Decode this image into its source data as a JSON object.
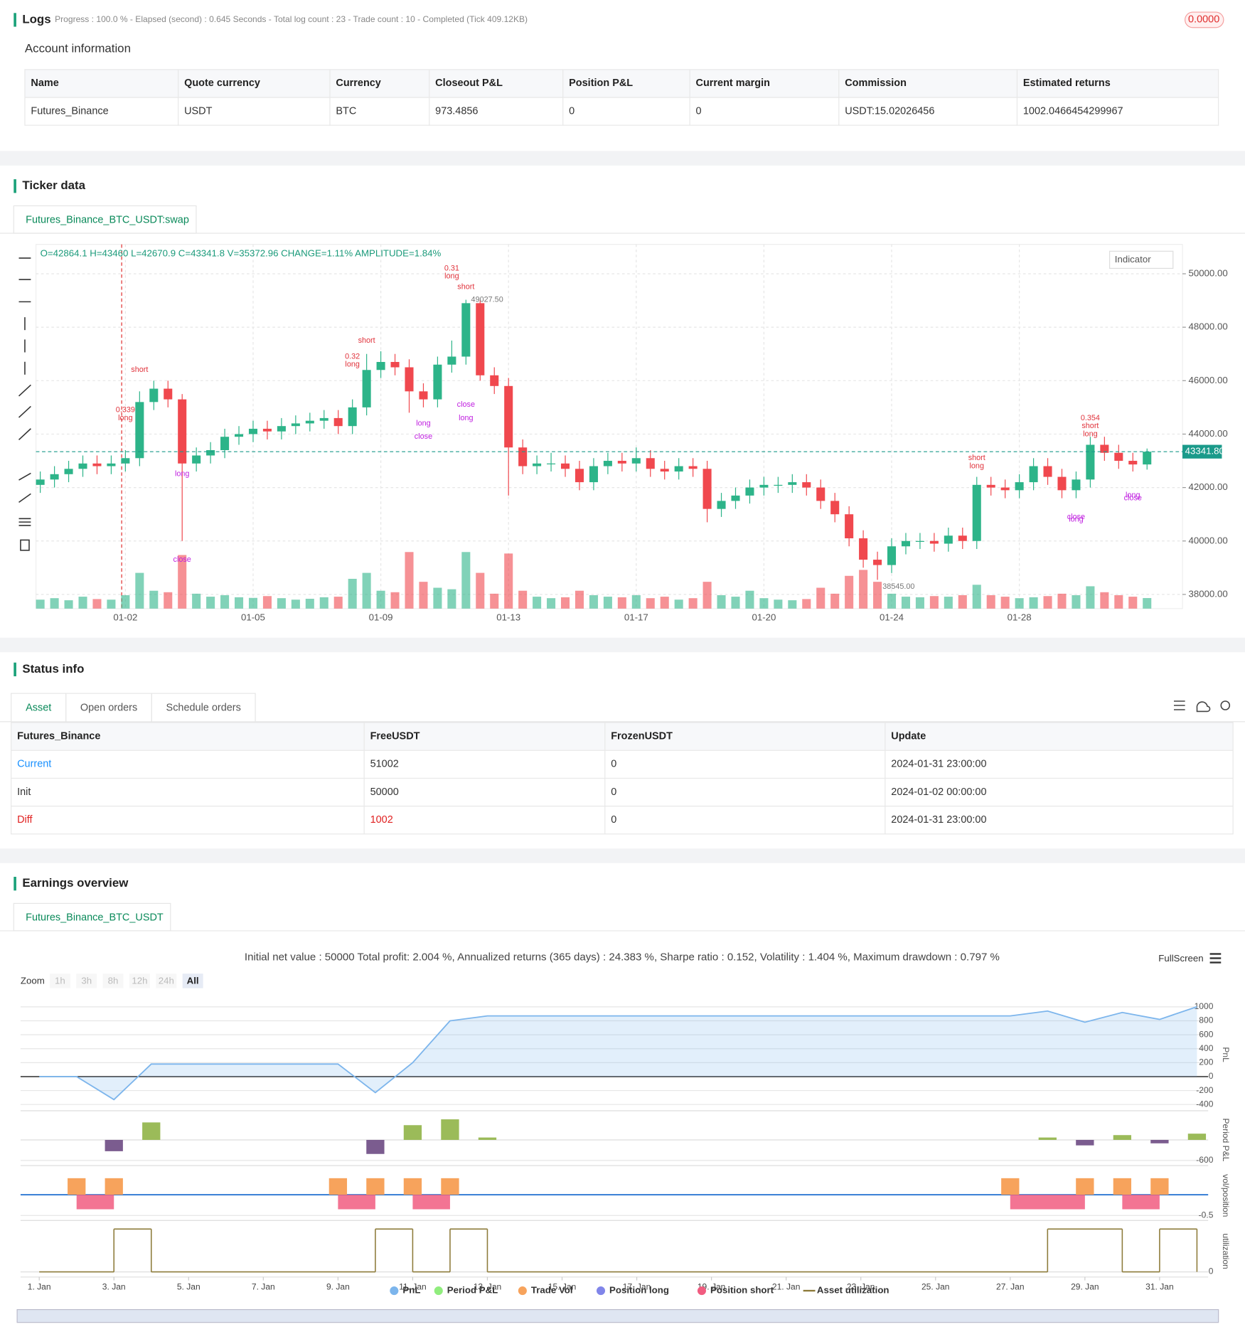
{
  "logs": {
    "title": "Logs",
    "summary": "Progress : 100.0 % - Elapsed (second) : 0.645  Seconds - Total log count : 23 - Trade count : 10 - Completed (Tick 409.12KB)",
    "badge": "0.0000"
  },
  "account": {
    "title": "Account information",
    "columns": [
      "Name",
      "Quote currency",
      "Currency",
      "Closeout P&L",
      "Position P&L",
      "Current margin",
      "Commission",
      "Estimated returns"
    ],
    "rows": [
      [
        "Futures_Binance",
        "USDT",
        "BTC",
        "973.4856",
        "0",
        "0",
        "USDT:15.02026456",
        "1002.0466454299967"
      ]
    ]
  },
  "ticker": {
    "title": "Ticker data",
    "tab": "Futures_Binance_BTC_USDT:swap",
    "indicator": "Indicator"
  },
  "status": {
    "title": "Status info",
    "tabs": [
      "Asset",
      "Open orders",
      "Schedule orders"
    ],
    "columns": [
      "Futures_Binance",
      "FreeUSDT",
      "FrozenUSDT",
      "Update"
    ],
    "rows": [
      [
        "Current",
        "51002",
        "0",
        "2024-01-31 23:00:00"
      ],
      [
        "Init",
        "50000",
        "0",
        "2024-01-02 00:00:00"
      ],
      [
        "Diff",
        "1002",
        "0",
        "2024-01-31 23:00:00"
      ]
    ]
  },
  "earnings": {
    "title": "Earnings overview",
    "tab": "Futures_Binance_BTC_USDT",
    "summary": "Initial net value : 50000 Total profit: 2.004 %, Annualized returns (365 days) : 24.383 %, Sharpe ratio : 0.152, Volatility : 1.404 %, Maximum drawdown : 0.797 %",
    "zoom_label": "Zoom",
    "zoom_buttons": [
      "1h",
      "3h",
      "8h",
      "12h",
      "24h",
      "All"
    ],
    "fullscreen": "FullScreen"
  },
  "chart_data": [
    {
      "type": "candlestick",
      "header": "O=42864.1 H=43460 L=42670.9 C=43341.8 V=35372.96 CHANGE=1.11% AMPLITUDE=1.84%",
      "categories": [
        null,
        null,
        null,
        null,
        null,
        null,
        "01-02",
        null,
        null,
        null,
        null,
        null,
        null,
        null,
        null,
        "01-05",
        null,
        null,
        null,
        null,
        null,
        null,
        null,
        null,
        "01-09",
        null,
        null,
        null,
        null,
        null,
        null,
        null,
        null,
        "01-13",
        null,
        null,
        null,
        null,
        null,
        null,
        null,
        null,
        "01-17",
        null,
        null,
        null,
        null,
        null,
        null,
        null,
        null,
        "01-20",
        null,
        null,
        null,
        null,
        null,
        null,
        null,
        null,
        "01-24",
        null,
        null,
        null,
        null,
        null,
        null,
        null,
        null,
        "01-28",
        null,
        null,
        null,
        null,
        null,
        null,
        null,
        null,
        null
      ],
      "open": [
        42100,
        42300,
        42500,
        42700,
        42900,
        42800,
        42900,
        43100,
        45200,
        45700,
        45300,
        42900,
        43200,
        43400,
        43900,
        44000,
        44200,
        44100,
        44300,
        44400,
        44500,
        44600,
        44300,
        45000,
        46400,
        46700,
        46500,
        45600,
        45300,
        46600,
        46900,
        48900,
        46200,
        45800,
        43500,
        42800,
        42900,
        42900,
        42700,
        42200,
        42800,
        43000,
        42900,
        43100,
        42700,
        42600,
        42800,
        42700,
        41200,
        41500,
        41700,
        42000,
        42100,
        42100,
        42200,
        42000,
        41500,
        41000,
        40100,
        39300,
        39100,
        39800,
        40000,
        40000,
        39900,
        40200,
        40000,
        42100,
        42000,
        41900,
        42200,
        42800,
        42400,
        41900,
        42300,
        43600,
        43300,
        43000,
        42864.1
      ],
      "high": [
        42600,
        42800,
        43000,
        43200,
        43200,
        43200,
        43400,
        45600,
        46000,
        46000,
        45500,
        43500,
        43700,
        44200,
        44300,
        44500,
        44500,
        44600,
        44700,
        44800,
        44900,
        44900,
        45300,
        47000,
        47100,
        47000,
        46800,
        45900,
        46900,
        47500,
        49027.5,
        49000,
        46500,
        46100,
        43800,
        43200,
        43300,
        43200,
        43000,
        43100,
        43300,
        43300,
        43500,
        43400,
        43000,
        43100,
        43100,
        43000,
        41800,
        42000,
        42300,
        42400,
        42400,
        42500,
        42500,
        42300,
        41800,
        41300,
        40400,
        39600,
        40100,
        40300,
        40300,
        40300,
        40500,
        40500,
        42400,
        42400,
        42300,
        42500,
        43100,
        43100,
        42700,
        42600,
        43900,
        43900,
        43600,
        43300,
        43460
      ],
      "low": [
        41800,
        42000,
        42200,
        42400,
        42500,
        42500,
        42600,
        42800,
        44900,
        45000,
        40000,
        42600,
        42900,
        43100,
        43600,
        43700,
        43800,
        43800,
        44000,
        44100,
        44200,
        44000,
        44000,
        44700,
        46100,
        46200,
        44800,
        45000,
        45000,
        46300,
        46600,
        46000,
        45500,
        41700,
        42500,
        42500,
        42600,
        42400,
        41900,
        41900,
        42500,
        42600,
        42600,
        42400,
        42300,
        42300,
        42400,
        40700,
        40900,
        41200,
        41400,
        41700,
        41800,
        41800,
        41700,
        41200,
        40700,
        39800,
        39000,
        38545,
        38800,
        39500,
        39700,
        39600,
        39600,
        39700,
        39700,
        41700,
        41600,
        41600,
        41900,
        42100,
        41600,
        41600,
        42000,
        43000,
        42700,
        42600,
        42670.9
      ],
      "close": [
        42300,
        42500,
        42700,
        42900,
        42800,
        42900,
        43100,
        45200,
        45700,
        45300,
        42900,
        43200,
        43400,
        43900,
        44000,
        44200,
        44100,
        44300,
        44400,
        44500,
        44600,
        44300,
        45000,
        46400,
        46700,
        46500,
        45600,
        45300,
        46600,
        46900,
        48900,
        46200,
        45800,
        43500,
        42800,
        42900,
        42900,
        42700,
        42200,
        42800,
        43000,
        42900,
        43100,
        42700,
        42600,
        42800,
        42700,
        41200,
        41500,
        41700,
        42000,
        42100,
        42100,
        42200,
        42000,
        41500,
        41000,
        40100,
        39300,
        39100,
        39800,
        40000,
        40000,
        39900,
        40200,
        40000,
        42100,
        42000,
        41900,
        42200,
        42800,
        42400,
        41900,
        42300,
        43600,
        43300,
        43000,
        42864.1,
        43341.8
      ],
      "volume": [
        30000,
        35000,
        28000,
        40000,
        32000,
        30000,
        45000,
        120000,
        60000,
        55000,
        180000,
        50000,
        40000,
        45000,
        38000,
        36000,
        42000,
        35000,
        30000,
        33000,
        38000,
        40000,
        100000,
        120000,
        60000,
        55000,
        190000,
        90000,
        70000,
        65000,
        190000,
        120000,
        50000,
        185000,
        60000,
        40000,
        35000,
        38000,
        60000,
        45000,
        40000,
        38000,
        45000,
        35000,
        40000,
        30000,
        35000,
        90000,
        45000,
        40000,
        60000,
        35000,
        30000,
        28000,
        32000,
        70000,
        50000,
        110000,
        130000,
        90000,
        50000,
        40000,
        38000,
        42000,
        40000,
        45000,
        80000,
        45000,
        40000,
        35000,
        38000,
        42000,
        50000,
        45000,
        75000,
        55000,
        45000,
        40000,
        35372.96
      ],
      "up_color": "#2db489",
      "down_color": "#f0484e",
      "ylim": [
        37470,
        51100
      ],
      "yticks": [
        {
          "value": 38000,
          "label": "38000.00"
        },
        {
          "value": 40000,
          "label": "40000.00"
        },
        {
          "value": 42000,
          "label": "42000.00"
        },
        {
          "value": 44000,
          "label": "44000.00"
        },
        {
          "value": 46000,
          "label": "46000.00"
        },
        {
          "value": 48000,
          "label": "48000.00"
        },
        {
          "value": 50000,
          "label": "50000.00"
        }
      ],
      "last_price": {
        "value": 43341.8,
        "label": "43341.80"
      },
      "annotations": [
        {
          "index": 30,
          "price": 49027.5,
          "label": "49027.50"
        },
        {
          "index": 59,
          "price": 38545,
          "label": "38545.00"
        }
      ],
      "trades": [
        {
          "index": 6,
          "price": 44900,
          "label": "0.339",
          "color": "#e0323b"
        },
        {
          "index": 6,
          "price": 44600,
          "label": "long",
          "color": "#e0323b"
        },
        {
          "index": 7,
          "price": 46400,
          "label": "short",
          "color": "#e0323b"
        },
        {
          "index": 10,
          "price": 42500,
          "label": "long",
          "color": "#c020e0"
        },
        {
          "index": 10,
          "price": 39300,
          "label": "close",
          "color": "#c020e0"
        },
        {
          "index": 23,
          "price": 47500,
          "label": "short",
          "color": "#e0323b"
        },
        {
          "index": 22,
          "price": 46900,
          "label": "0.32",
          "color": "#e0323b"
        },
        {
          "index": 22,
          "price": 46600,
          "label": "long",
          "color": "#e0323b"
        },
        {
          "index": 27,
          "price": 44400,
          "label": "long",
          "color": "#c020e0"
        },
        {
          "index": 27,
          "price": 43900,
          "label": "close",
          "color": "#c020e0"
        },
        {
          "index": 29,
          "price": 50200,
          "label": "0.31",
          "color": "#e0323b"
        },
        {
          "index": 29,
          "price": 49900,
          "label": "long",
          "color": "#e0323b"
        },
        {
          "index": 30,
          "price": 49500,
          "label": "short",
          "color": "#e0323b"
        },
        {
          "index": 30,
          "price": 45100,
          "label": "close",
          "color": "#c020e0"
        },
        {
          "index": 30,
          "price": 44600,
          "label": "long",
          "color": "#c020e0"
        },
        {
          "index": 66,
          "price": 43100,
          "label": "short",
          "color": "#e0323b"
        },
        {
          "index": 66,
          "price": 42800,
          "label": "long",
          "color": "#e0323b"
        },
        {
          "index": 73,
          "price": 40800,
          "label": "long",
          "color": "#c020e0"
        },
        {
          "index": 73,
          "price": 40900,
          "label": "close",
          "color": "#c020e0"
        },
        {
          "index": 74,
          "price": 44600,
          "label": "0.354",
          "color": "#e0323b"
        },
        {
          "index": 74,
          "price": 44300,
          "label": "short",
          "color": "#e0323b"
        },
        {
          "index": 74,
          "price": 44000,
          "label": "long",
          "color": "#e0323b"
        },
        {
          "index": 77,
          "price": 41700,
          "label": "long",
          "color": "#c020e0"
        },
        {
          "index": 77,
          "price": 41600,
          "label": "close",
          "color": "#c020e0"
        }
      ],
      "grid": true
    },
    {
      "type": "area",
      "ylabel": "PnL",
      "xlim": [
        0.5,
        32.3
      ],
      "ylim": [
        -490,
        1120
      ],
      "yticks": [
        -400,
        -200,
        0,
        200,
        400,
        600,
        800,
        1000
      ],
      "series": [
        {
          "name": "PnL",
          "color": "#7cb5ec",
          "x": [
            1,
            2,
            3,
            4,
            9,
            10,
            11,
            12,
            13,
            27,
            28,
            29,
            30,
            31,
            32
          ],
          "values": [
            0,
            0,
            -330,
            180,
            180,
            -230,
            200,
            800,
            870,
            870,
            940,
            780,
            920,
            820,
            1002
          ]
        }
      ]
    },
    {
      "type": "bar",
      "ylabel": "Period P&L",
      "xlim": [
        0.5,
        32.3
      ],
      "ylim": [
        -750,
        750
      ],
      "yticks": [
        -600
      ],
      "series": [
        {
          "name": "Period P&L",
          "color": "#90ed7d",
          "up_color": "#9bbb59",
          "down_color": "#7b5c8f",
          "x": [
            3,
            4,
            10,
            11,
            12,
            13,
            28,
            29,
            30,
            31,
            32
          ],
          "values": [
            -330,
            510,
            -410,
            430,
            600,
            70,
            70,
            -160,
            140,
            -100,
            182
          ]
        }
      ]
    },
    {
      "type": "bar",
      "ylabel": "vol/position",
      "xlim": [
        0.5,
        32.3
      ],
      "ylim": [
        -0.62,
        0.58
      ],
      "yticks": [
        -0.5
      ],
      "series": [
        {
          "name": "Trade Vol",
          "color": "#f7a35c",
          "x": [
            2,
            3,
            9,
            10,
            11,
            12,
            27,
            29,
            30,
            31
          ],
          "values": [
            0.4,
            0.4,
            0.4,
            0.4,
            0.4,
            0.4,
            0.4,
            0.4,
            0.4,
            0.4
          ]
        },
        {
          "name": "Position long",
          "color": "#8085e9",
          "x": [],
          "values": []
        },
        {
          "name": "Position short",
          "color": "#f15c80",
          "step": true,
          "x": [
            1,
            2,
            3,
            9,
            10,
            11,
            12,
            27,
            29,
            30,
            31,
            32
          ],
          "values": [
            0,
            -0.35,
            0,
            -0.35,
            0,
            -0.35,
            0,
            -0.35,
            0,
            -0.35,
            0,
            0
          ]
        }
      ]
    },
    {
      "type": "step",
      "ylabel": "utilization",
      "xlim": [
        0.5,
        32.3
      ],
      "ylim": [
        -0.12,
        1.08
      ],
      "yticks": [
        0
      ],
      "xticks": [
        {
          "value": 1,
          "label": "1. Jan"
        },
        {
          "value": 3,
          "label": "3. Jan"
        },
        {
          "value": 5,
          "label": "5. Jan"
        },
        {
          "value": 7,
          "label": "7. Jan"
        },
        {
          "value": 9,
          "label": "9. Jan"
        },
        {
          "value": 11,
          "label": "11. Jan"
        },
        {
          "value": 13,
          "label": "13. Jan"
        },
        {
          "value": 15,
          "label": "15. Jan"
        },
        {
          "value": 17,
          "label": "17. Jan"
        },
        {
          "value": 19,
          "label": "19. Jan"
        },
        {
          "value": 21,
          "label": "21. Jan"
        },
        {
          "value": 23,
          "label": "23. Jan"
        },
        {
          "value": 25,
          "label": "25. Jan"
        },
        {
          "value": 27,
          "label": "27. Jan"
        },
        {
          "value": 29,
          "label": "29. Jan"
        },
        {
          "value": 31,
          "label": "31. Jan"
        }
      ],
      "series": [
        {
          "name": "Asset utilization",
          "color": "#8d7b3a",
          "x": [
            1,
            3,
            4,
            10,
            11,
            12,
            13,
            28,
            30,
            31,
            32
          ],
          "values": [
            0,
            1,
            0,
            1,
            0,
            1,
            0,
            1,
            0,
            1,
            0
          ]
        }
      ]
    }
  ]
}
